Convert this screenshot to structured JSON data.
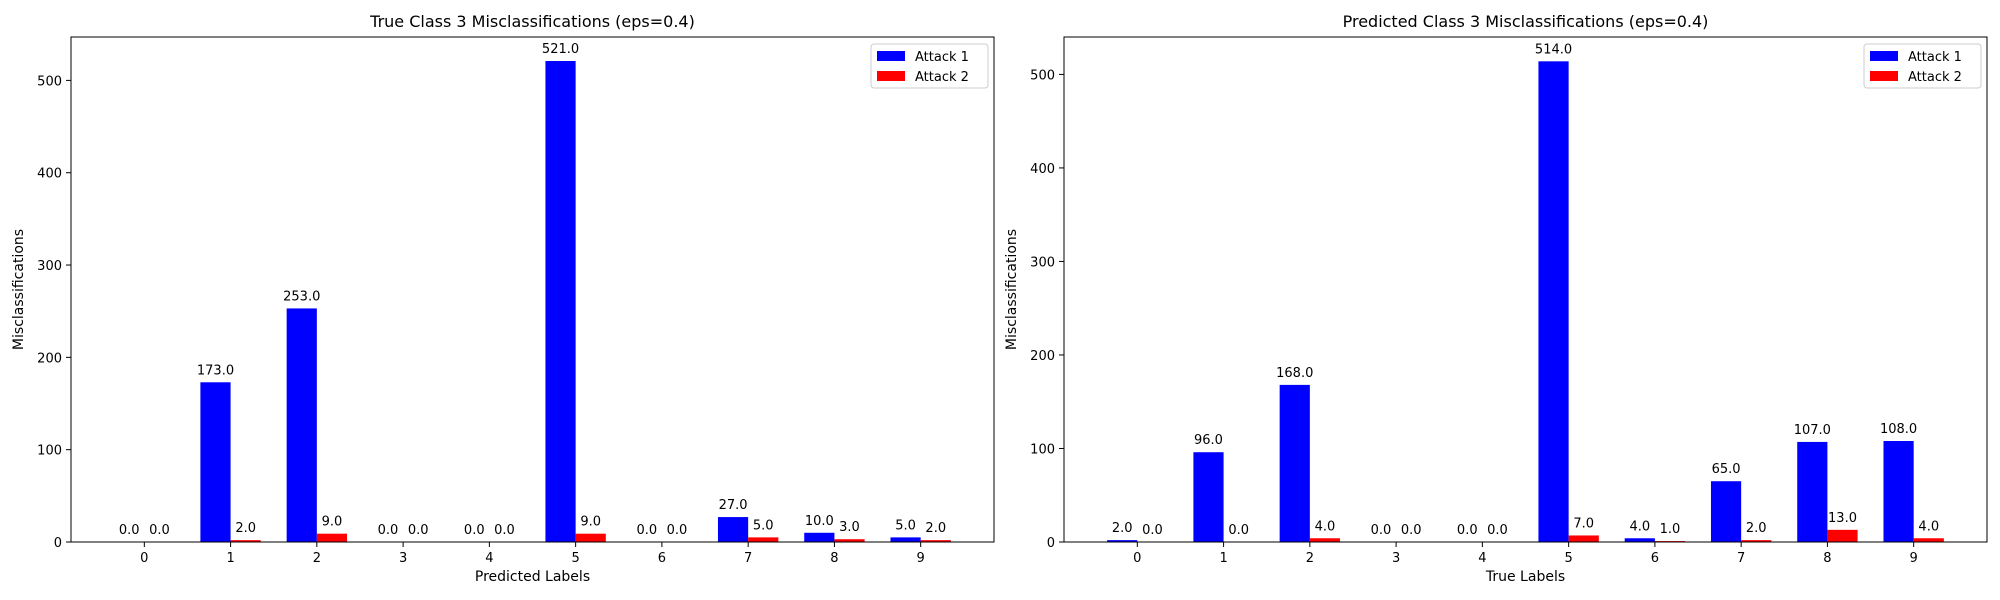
{
  "chart_data": [
    {
      "type": "bar",
      "title": "True Class 3 Misclassifications (eps=0.4)",
      "xlabel": "Predicted Labels",
      "ylabel": "Misclassifications",
      "categories": [
        "0",
        "1",
        "2",
        "3",
        "4",
        "5",
        "6",
        "7",
        "8",
        "9"
      ],
      "ylim": [
        0,
        547
      ],
      "yticks": [
        0,
        100,
        200,
        300,
        400,
        500
      ],
      "legend": "top-right",
      "series": [
        {
          "name": "Attack 1",
          "color": "#0000ff",
          "values": [
            0,
            173,
            253,
            0,
            0,
            521,
            0,
            27,
            10,
            5
          ],
          "labels": [
            "0.0",
            "173.0",
            "253.0",
            "0.0",
            "0.0",
            "521.0",
            "0.0",
            "27.0",
            "10.0",
            "5.0"
          ]
        },
        {
          "name": "Attack 2",
          "color": "#ff0000",
          "values": [
            0,
            2,
            9,
            0,
            0,
            9,
            0,
            5,
            3,
            2
          ],
          "labels": [
            "0.0",
            "2.0",
            "9.0",
            "0.0",
            "0.0",
            "9.0",
            "0.0",
            "5.0",
            "3.0",
            "2.0"
          ]
        }
      ]
    },
    {
      "type": "bar",
      "title": "Predicted Class 3 Misclassifications (eps=0.4)",
      "xlabel": "True Labels",
      "ylabel": "Misclassifications",
      "categories": [
        "0",
        "1",
        "2",
        "3",
        "4",
        "5",
        "6",
        "7",
        "8",
        "9"
      ],
      "ylim": [
        0,
        540
      ],
      "yticks": [
        0,
        100,
        200,
        300,
        400,
        500
      ],
      "legend": "top-right",
      "series": [
        {
          "name": "Attack 1",
          "color": "#0000ff",
          "values": [
            2,
            96,
            168,
            0,
            0,
            514,
            4,
            65,
            107,
            108
          ],
          "labels": [
            "2.0",
            "96.0",
            "168.0",
            "0.0",
            "0.0",
            "514.0",
            "4.0",
            "65.0",
            "107.0",
            "108.0"
          ]
        },
        {
          "name": "Attack 2",
          "color": "#ff0000",
          "values": [
            0,
            0,
            4,
            0,
            0,
            7,
            1,
            2,
            13,
            4
          ],
          "labels": [
            "0.0",
            "0.0",
            "4.0",
            "0.0",
            "0.0",
            "7.0",
            "1.0",
            "2.0",
            "13.0",
            "4.0"
          ]
        }
      ]
    }
  ]
}
